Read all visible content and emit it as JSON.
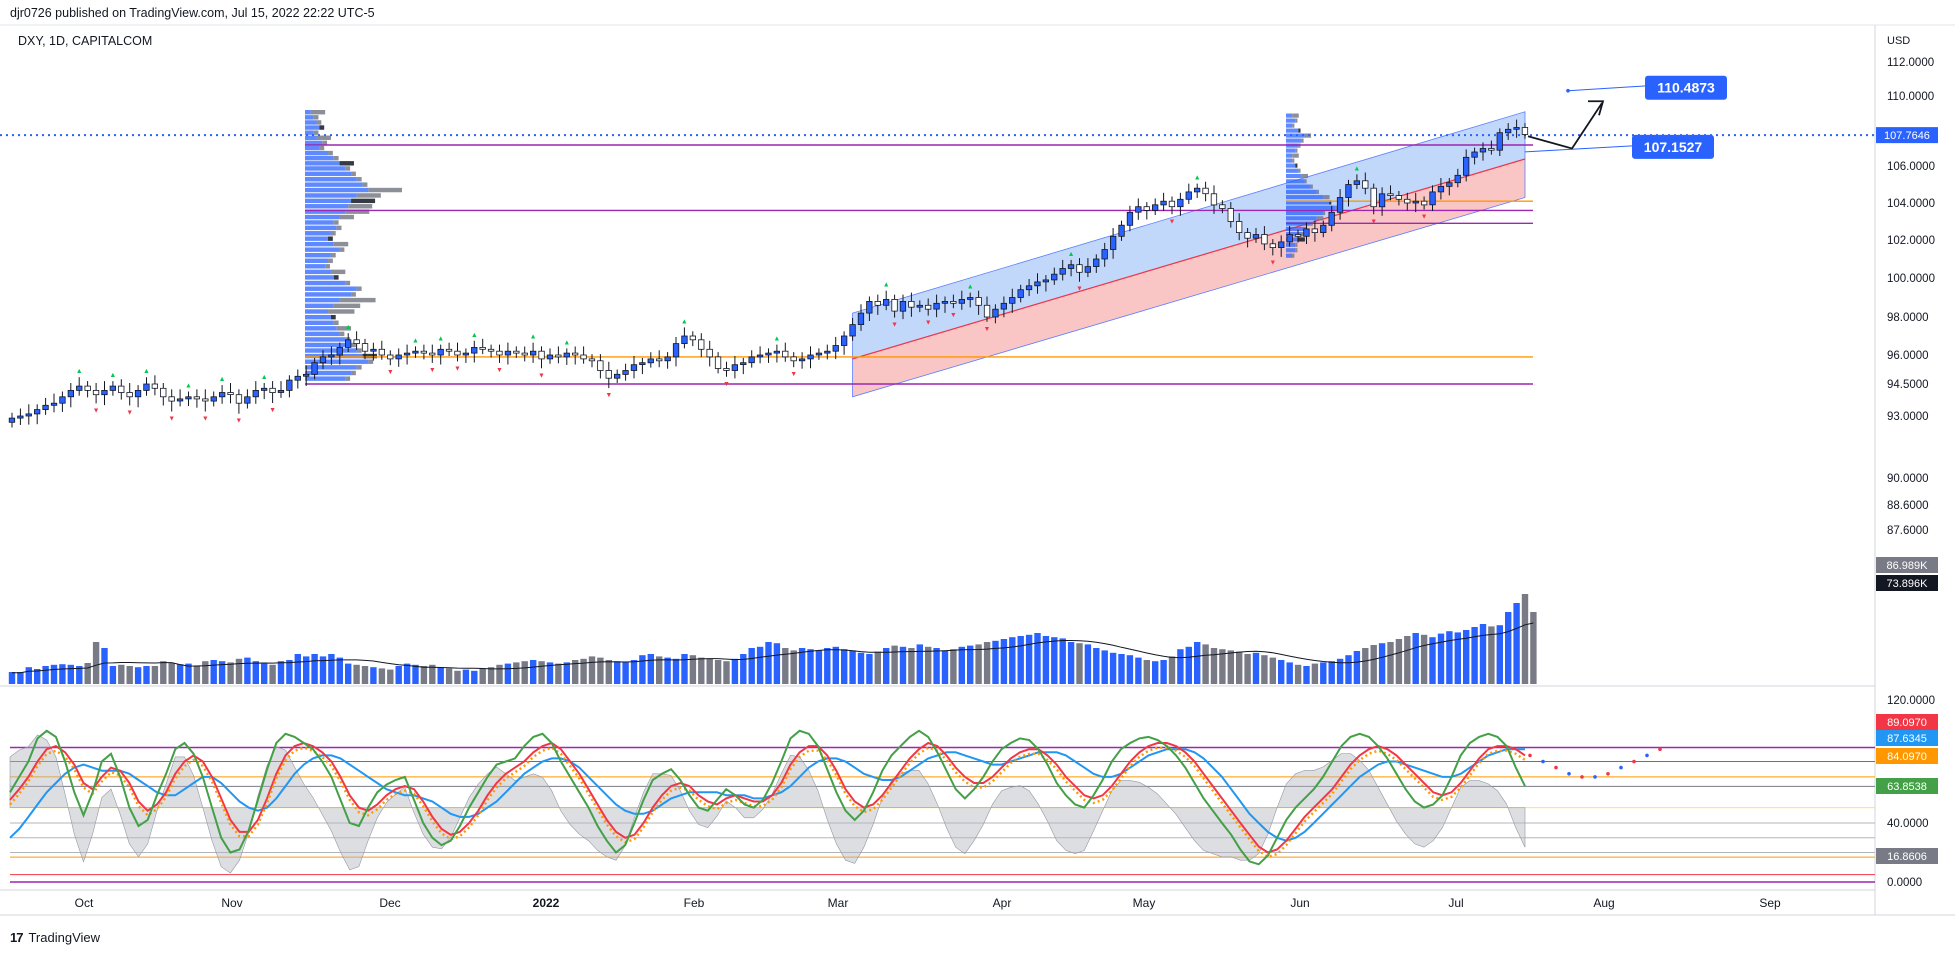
{
  "header": {
    "text": "djr0726 published on TradingView.com, Jul 15, 2022 22:22 UTC-5"
  },
  "symbol": {
    "text": "DXY, 1D, CAPITALCOM"
  },
  "footer": {
    "brand": "TradingView"
  },
  "colors": {
    "up": "#2962ff",
    "down": "#131722",
    "volUp": "#2962ff",
    "volDown": "#787b86",
    "channelUpper": "#aecbfa",
    "channelLower": "#f7b6b6",
    "purple": "#9c27b0",
    "orange": "#ff9800",
    "red": "#f23645",
    "green": "#43a047",
    "blue": "#2196f3"
  },
  "chart_data": [
    {
      "type": "candlestick",
      "title": "DXY, 1D, CAPITALCOM",
      "currency": "USD",
      "x_ticks": [
        "Oct",
        "Nov",
        "Dec",
        "2022",
        "Feb",
        "Mar",
        "Apr",
        "May",
        "Jun",
        "Jul",
        "Aug",
        "Sep"
      ],
      "y_ticks": [
        "112.0000",
        "110.0000",
        "106.0000",
        "104.0000",
        "102.0000",
        "100.0000",
        "98.0000",
        "96.0000",
        "94.5000",
        "93.0000",
        "90.0000",
        "88.6000",
        "87.6000"
      ],
      "price_range": [
        86.5,
        113.0
      ],
      "last_price": {
        "value": "107.7646",
        "color": "#2962ff"
      },
      "annotations": [
        {
          "text": "110.4873",
          "value": 110.4873
        },
        {
          "text": "107.1527",
          "value": 107.1527
        }
      ],
      "levels": [
        {
          "value": 107.2,
          "color": "#9c27b0"
        },
        {
          "value": 104.1,
          "color": "#ff9800"
        },
        {
          "value": 103.6,
          "color": "#9c27b0"
        },
        {
          "value": 102.9,
          "color": "#9c27b0"
        },
        {
          "value": 95.9,
          "color": "#ff9800"
        },
        {
          "value": 94.5,
          "color": "#9c27b0"
        }
      ],
      "close_series": [
        92.9,
        93.0,
        93.1,
        93.3,
        93.5,
        93.6,
        93.9,
        94.2,
        94.4,
        94.2,
        94.0,
        94.2,
        94.4,
        94.1,
        93.9,
        94.2,
        94.5,
        94.3,
        93.9,
        93.7,
        93.8,
        93.9,
        93.8,
        93.7,
        93.9,
        94.1,
        94.0,
        93.6,
        93.9,
        94.2,
        94.3,
        94.1,
        94.2,
        94.7,
        94.9,
        95.0,
        95.6,
        95.9,
        96.0,
        96.4,
        96.8,
        96.6,
        96.2,
        96.3,
        96.0,
        95.8,
        96.0,
        96.1,
        96.2,
        96.1,
        96.0,
        96.3,
        96.2,
        96.0,
        96.1,
        96.4,
        96.3,
        96.2,
        96.0,
        96.2,
        96.1,
        96.0,
        96.2,
        95.8,
        96.0,
        95.9,
        96.1,
        96.0,
        95.8,
        95.7,
        95.2,
        94.8,
        95.0,
        95.2,
        95.5,
        95.6,
        95.8,
        95.7,
        95.9,
        96.6,
        97.0,
        96.8,
        96.3,
        95.9,
        95.3,
        95.2,
        95.5,
        95.6,
        95.9,
        96.0,
        96.1,
        96.2,
        95.9,
        95.7,
        95.8,
        96.0,
        96.1,
        96.2,
        96.5,
        97.0,
        97.6,
        98.2,
        98.8,
        98.6,
        98.9,
        98.3,
        98.8,
        98.5,
        98.6,
        98.4,
        98.7,
        98.8,
        98.7,
        98.9,
        99.0,
        98.6,
        98.0,
        98.4,
        98.7,
        99.0,
        99.4,
        99.6,
        99.8,
        99.9,
        100.2,
        100.5,
        100.7,
        100.3,
        100.6,
        101.0,
        101.5,
        102.2,
        102.8,
        103.5,
        103.8,
        103.6,
        103.9,
        104.1,
        103.8,
        104.2,
        104.6,
        104.8,
        104.5,
        103.9,
        103.7,
        103.0,
        102.4,
        102.1,
        102.3,
        101.8,
        101.6,
        101.9,
        102.3,
        102.2,
        102.6,
        102.4,
        102.8,
        103.5,
        104.3,
        105.0,
        105.2,
        104.8,
        103.8,
        104.5,
        104.4,
        104.2,
        104.0,
        104.1,
        103.9,
        104.6,
        104.9,
        105.1,
        105.5,
        106.5,
        106.8,
        107.0,
        106.9,
        107.9,
        108.1,
        108.2,
        107.8
      ]
    },
    {
      "type": "bar",
      "title": "Volume",
      "series_labels": [
        "86.989K",
        "73.896K"
      ],
      "volume_ratio_series": [
        0.2,
        0.2,
        0.28,
        0.25,
        0.3,
        0.32,
        0.33,
        0.32,
        0.3,
        0.35,
        0.7,
        0.6,
        0.3,
        0.32,
        0.3,
        0.28,
        0.3,
        0.3,
        0.38,
        0.35,
        0.33,
        0.34,
        0.31,
        0.38,
        0.4,
        0.38,
        0.36,
        0.42,
        0.44,
        0.38,
        0.34,
        0.32,
        0.38,
        0.4,
        0.5,
        0.46,
        0.5,
        0.46,
        0.5,
        0.44,
        0.34,
        0.32,
        0.3,
        0.28,
        0.26,
        0.24,
        0.3,
        0.34,
        0.32,
        0.3,
        0.32,
        0.28,
        0.26,
        0.22,
        0.24,
        0.22,
        0.26,
        0.28,
        0.32,
        0.34,
        0.36,
        0.38,
        0.4,
        0.38,
        0.36,
        0.34,
        0.36,
        0.4,
        0.42,
        0.46,
        0.44,
        0.4,
        0.38,
        0.36,
        0.4,
        0.48,
        0.5,
        0.46,
        0.44,
        0.42,
        0.5,
        0.48,
        0.44,
        0.42,
        0.4,
        0.38,
        0.42,
        0.5,
        0.6,
        0.62,
        0.7,
        0.68,
        0.6,
        0.56,
        0.6,
        0.58,
        0.56,
        0.6,
        0.62,
        0.58,
        0.56,
        0.52,
        0.5,
        0.54,
        0.6,
        0.64,
        0.62,
        0.6,
        0.66,
        0.62,
        0.6,
        0.56,
        0.58,
        0.62,
        0.64,
        0.66,
        0.7,
        0.72,
        0.75,
        0.78,
        0.8,
        0.82,
        0.85,
        0.8,
        0.78,
        0.76,
        0.7,
        0.68,
        0.66,
        0.6,
        0.56,
        0.52,
        0.5,
        0.48,
        0.44,
        0.4,
        0.38,
        0.4,
        0.46,
        0.58,
        0.62,
        0.7,
        0.66,
        0.6,
        0.58,
        0.56,
        0.54,
        0.5,
        0.52,
        0.48,
        0.44,
        0.4,
        0.36,
        0.32,
        0.3,
        0.34,
        0.36,
        0.38,
        0.42,
        0.48,
        0.55,
        0.6,
        0.65,
        0.68,
        0.7,
        0.75,
        0.8,
        0.85,
        0.82,
        0.78,
        0.84,
        0.88,
        0.86,
        0.9,
        0.95,
        1.0,
        0.96,
        0.98,
        1.2,
        1.35,
        1.5,
        1.2
      ]
    },
    {
      "type": "line",
      "title": "Oscillator",
      "y_ticks": [
        "120.0000",
        "40.0000",
        "0.0000"
      ],
      "y_range": [
        -5,
        125
      ],
      "value_labels": [
        {
          "text": "89.0970",
          "value": 89.097,
          "color": "#f23645"
        },
        {
          "text": "87.6345",
          "value": 87.6345,
          "color": "#2196f3"
        },
        {
          "text": "84.0970",
          "value": 84.097,
          "color": "#ff9800"
        },
        {
          "text": "63.8538",
          "value": 63.8538,
          "color": "#43a047"
        },
        {
          "text": "16.8606",
          "value": 16.8606,
          "color": "#787b86"
        }
      ],
      "guide_levels": [
        89.1,
        80,
        70,
        63.8,
        50,
        40,
        30,
        20,
        16.86,
        5,
        0
      ],
      "green_series": [
        60,
        70,
        80,
        95,
        100,
        96,
        80,
        60,
        45,
        60,
        80,
        85,
        70,
        50,
        38,
        42,
        58,
        72,
        88,
        92,
        85,
        70,
        50,
        30,
        20,
        22,
        35,
        55,
        75,
        92,
        98,
        96,
        92,
        88,
        80,
        70,
        55,
        40,
        38,
        50,
        60,
        65,
        68,
        70,
        55,
        40,
        30,
        25,
        28,
        38,
        50,
        60,
        70,
        78,
        80,
        82,
        90,
        96,
        98,
        92,
        80,
        70,
        60,
        50,
        38,
        28,
        20,
        25,
        40,
        55,
        68,
        72,
        75,
        68,
        58,
        50,
        48,
        55,
        62,
        58,
        52,
        50,
        55,
        66,
        80,
        95,
        100,
        98,
        90,
        75,
        60,
        48,
        42,
        48,
        60,
        74,
        84,
        90,
        96,
        100,
        96,
        86,
        74,
        62,
        56,
        62,
        70,
        80,
        88,
        92,
        95,
        94,
        88,
        78,
        66,
        58,
        52,
        50,
        58,
        68,
        80,
        88,
        92,
        95,
        96,
        94,
        90,
        84,
        76,
        66,
        56,
        48,
        40,
        32,
        22,
        14,
        12,
        18,
        30,
        42,
        50,
        56,
        62,
        70,
        80,
        90,
        96,
        98,
        96,
        90,
        82,
        72,
        62,
        54,
        50,
        52,
        58,
        70,
        84,
        92,
        96,
        98,
        96,
        90,
        76,
        64
      ],
      "red_series": [
        55,
        62,
        70,
        80,
        88,
        90,
        86,
        78,
        66,
        62,
        70,
        76,
        74,
        66,
        54,
        48,
        52,
        60,
        72,
        80,
        84,
        80,
        70,
        56,
        42,
        34,
        34,
        42,
        56,
        72,
        84,
        90,
        92,
        90,
        86,
        80,
        70,
        58,
        50,
        48,
        52,
        58,
        62,
        64,
        62,
        54,
        44,
        36,
        32,
        34,
        40,
        48,
        58,
        66,
        72,
        76,
        80,
        86,
        90,
        92,
        88,
        80,
        72,
        62,
        52,
        42,
        34,
        30,
        32,
        40,
        50,
        58,
        64,
        66,
        64,
        58,
        54,
        52,
        56,
        58,
        56,
        54,
        54,
        58,
        66,
        78,
        86,
        90,
        90,
        84,
        74,
        62,
        54,
        50,
        52,
        58,
        66,
        74,
        82,
        88,
        92,
        90,
        84,
        76,
        70,
        66,
        66,
        70,
        76,
        82,
        86,
        88,
        88,
        84,
        78,
        70,
        64,
        58,
        56,
        58,
        64,
        72,
        80,
        86,
        90,
        92,
        92,
        90,
        86,
        80,
        72,
        64,
        56,
        48,
        40,
        32,
        24,
        20,
        22,
        28,
        36,
        44,
        50,
        56,
        62,
        70,
        78,
        84,
        88,
        90,
        88,
        84,
        78,
        72,
        66,
        60,
        58,
        60,
        66,
        74,
        82,
        88,
        90,
        90,
        88,
        84
      ],
      "blue_series": [
        30,
        36,
        44,
        52,
        60,
        66,
        72,
        76,
        78,
        76,
        74,
        74,
        74,
        72,
        68,
        64,
        60,
        58,
        58,
        62,
        66,
        70,
        70,
        66,
        60,
        54,
        50,
        48,
        50,
        56,
        64,
        72,
        78,
        82,
        84,
        84,
        82,
        78,
        74,
        70,
        66,
        62,
        60,
        58,
        58,
        56,
        54,
        50,
        46,
        44,
        44,
        46,
        50,
        54,
        60,
        66,
        72,
        76,
        80,
        82,
        82,
        80,
        76,
        70,
        64,
        58,
        52,
        48,
        46,
        46,
        48,
        52,
        56,
        58,
        60,
        60,
        60,
        60,
        58,
        58,
        58,
        56,
        56,
        58,
        60,
        64,
        70,
        76,
        80,
        82,
        82,
        80,
        76,
        72,
        70,
        68,
        68,
        70,
        74,
        78,
        82,
        84,
        86,
        86,
        84,
        82,
        80,
        78,
        78,
        80,
        82,
        84,
        86,
        86,
        86,
        84,
        80,
        76,
        72,
        70,
        70,
        72,
        76,
        80,
        84,
        86,
        88,
        88,
        88,
        86,
        82,
        76,
        70,
        62,
        54,
        46,
        40,
        34,
        30,
        28,
        30,
        34,
        40,
        46,
        52,
        58,
        64,
        70,
        74,
        78,
        80,
        80,
        78,
        76,
        74,
        72,
        70,
        70,
        72,
        76,
        80,
        84,
        86,
        88,
        88,
        88
      ],
      "projection_series": [
        84,
        80,
        76,
        72,
        70,
        70,
        72,
        76,
        80,
        84,
        88
      ]
    }
  ]
}
